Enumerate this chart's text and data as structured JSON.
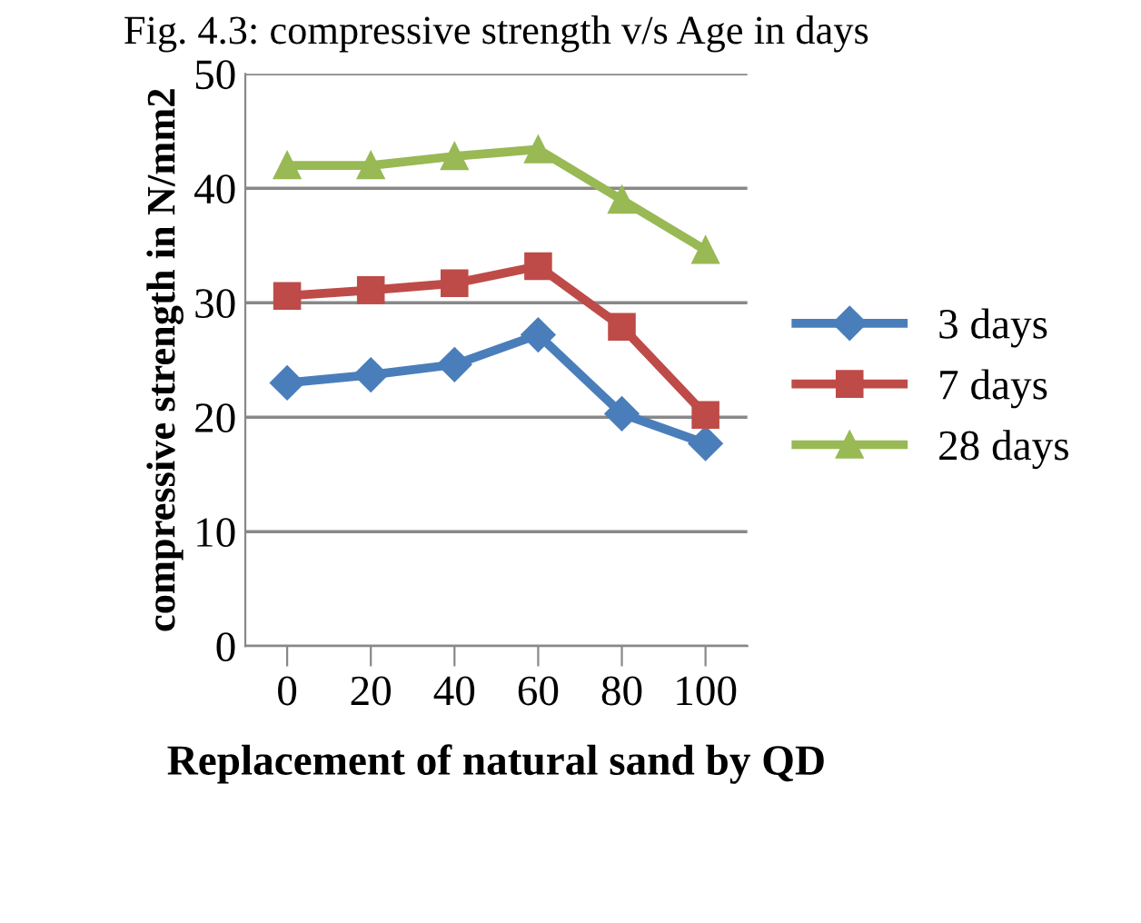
{
  "chart_data": {
    "type": "line",
    "title": "Fig. 4.3: compressive strength v/s Age in days",
    "xlabel": "Replacement of natural sand by QD",
    "ylabel": "compressive strength in N/mm2",
    "categories": [
      "0",
      "20",
      "40",
      "60",
      "80",
      "100"
    ],
    "series": [
      {
        "name": "3 days",
        "color": "#4a7ebb",
        "marker": "diamond",
        "values": [
          23,
          23.7,
          24.6,
          27.2,
          20.3,
          17.7
        ]
      },
      {
        "name": "7 days",
        "color": "#be4b48",
        "marker": "square",
        "values": [
          30.6,
          31.1,
          31.7,
          33.2,
          27.9,
          20.2
        ]
      },
      {
        "name": "28 days",
        "color": "#98b954",
        "marker": "triangle",
        "values": [
          42,
          42,
          42.8,
          43.4,
          39,
          34.6
        ]
      }
    ],
    "ylim": [
      0,
      50
    ],
    "yticks": [
      0,
      10,
      20,
      30,
      40,
      50
    ],
    "grid": "y",
    "legend": "right",
    "line_style": "solid"
  }
}
